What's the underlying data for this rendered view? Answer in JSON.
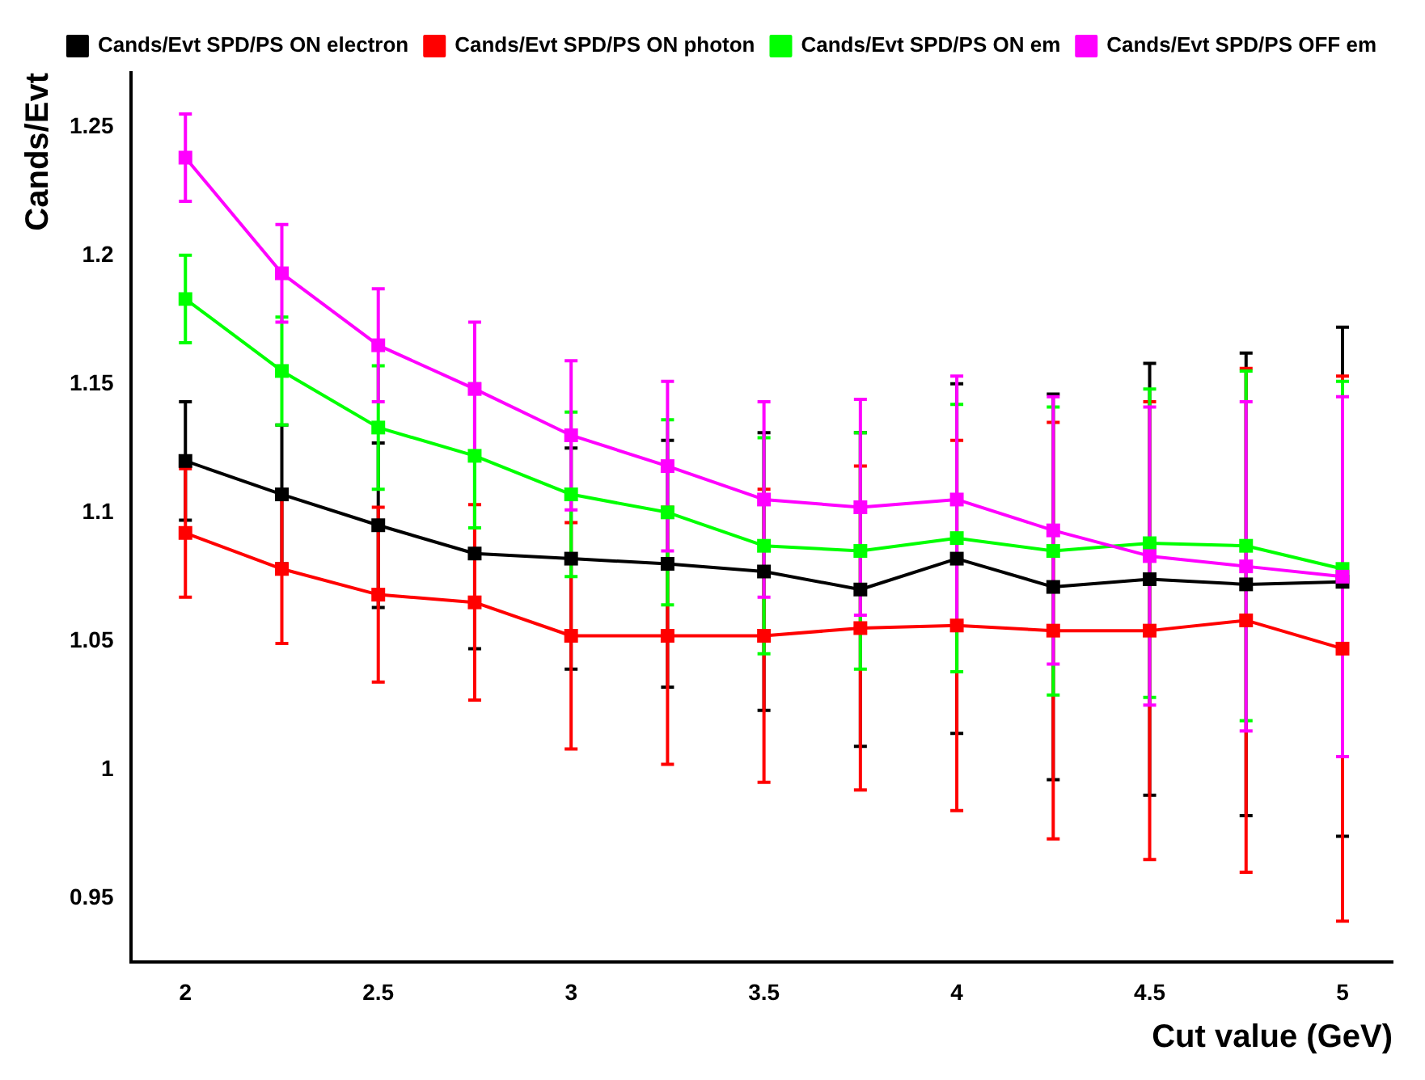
{
  "chart_data": {
    "type": "line",
    "xlabel": "Cut value (GeV)",
    "ylabel": "Cands/Evt",
    "x": [
      2,
      2.25,
      2.5,
      2.75,
      3,
      3.25,
      3.5,
      3.75,
      4,
      4.25,
      4.5,
      4.75,
      5
    ],
    "xlim": [
      1.86,
      5.13
    ],
    "xticks": [
      2,
      2.5,
      3,
      3.5,
      4,
      4.5,
      5
    ],
    "ylim": [
      0.925,
      1.271
    ],
    "yticks": [
      0.95,
      1,
      1.05,
      1.1,
      1.15,
      1.2,
      1.25
    ],
    "marker": "square",
    "legend": "top right",
    "grid": false,
    "series": [
      {
        "name": "Cands/Evt SPD/PS ON electron",
        "color": "#000000",
        "values": [
          1.12,
          1.107,
          1.095,
          1.084,
          1.082,
          1.08,
          1.077,
          1.07,
          1.082,
          1.071,
          1.074,
          1.072,
          1.073
        ],
        "errors": [
          0.023,
          0.027,
          0.032,
          0.037,
          0.043,
          0.048,
          0.054,
          0.061,
          0.068,
          0.075,
          0.084,
          0.09,
          0.099
        ]
      },
      {
        "name": "Cands/Evt SPD/PS ON photon",
        "color": "#ff0000",
        "values": [
          1.092,
          1.078,
          1.068,
          1.065,
          1.052,
          1.052,
          1.052,
          1.055,
          1.056,
          1.054,
          1.054,
          1.058,
          1.047
        ],
        "errors": [
          0.025,
          0.029,
          0.034,
          0.038,
          0.044,
          0.05,
          0.057,
          0.063,
          0.072,
          0.081,
          0.089,
          0.098,
          0.106
        ]
      },
      {
        "name": "Cands/Evt SPD/PS ON em",
        "color": "#00ff00",
        "values": [
          1.183,
          1.155,
          1.133,
          1.122,
          1.107,
          1.1,
          1.087,
          1.085,
          1.09,
          1.085,
          1.088,
          1.087,
          1.078
        ],
        "errors": [
          0.017,
          0.021,
          0.024,
          0.028,
          0.032,
          0.036,
          0.042,
          0.046,
          0.052,
          0.056,
          0.06,
          0.068,
          0.073
        ]
      },
      {
        "name": "Cands/Evt SPD/PS OFF em",
        "color": "#ff00ff",
        "values": [
          1.238,
          1.193,
          1.165,
          1.148,
          1.13,
          1.118,
          1.105,
          1.102,
          1.105,
          1.093,
          1.083,
          1.079,
          1.075
        ],
        "errors": [
          0.017,
          0.019,
          0.022,
          0.026,
          0.029,
          0.033,
          0.038,
          0.042,
          0.048,
          0.052,
          0.058,
          0.064,
          0.07
        ]
      }
    ]
  }
}
